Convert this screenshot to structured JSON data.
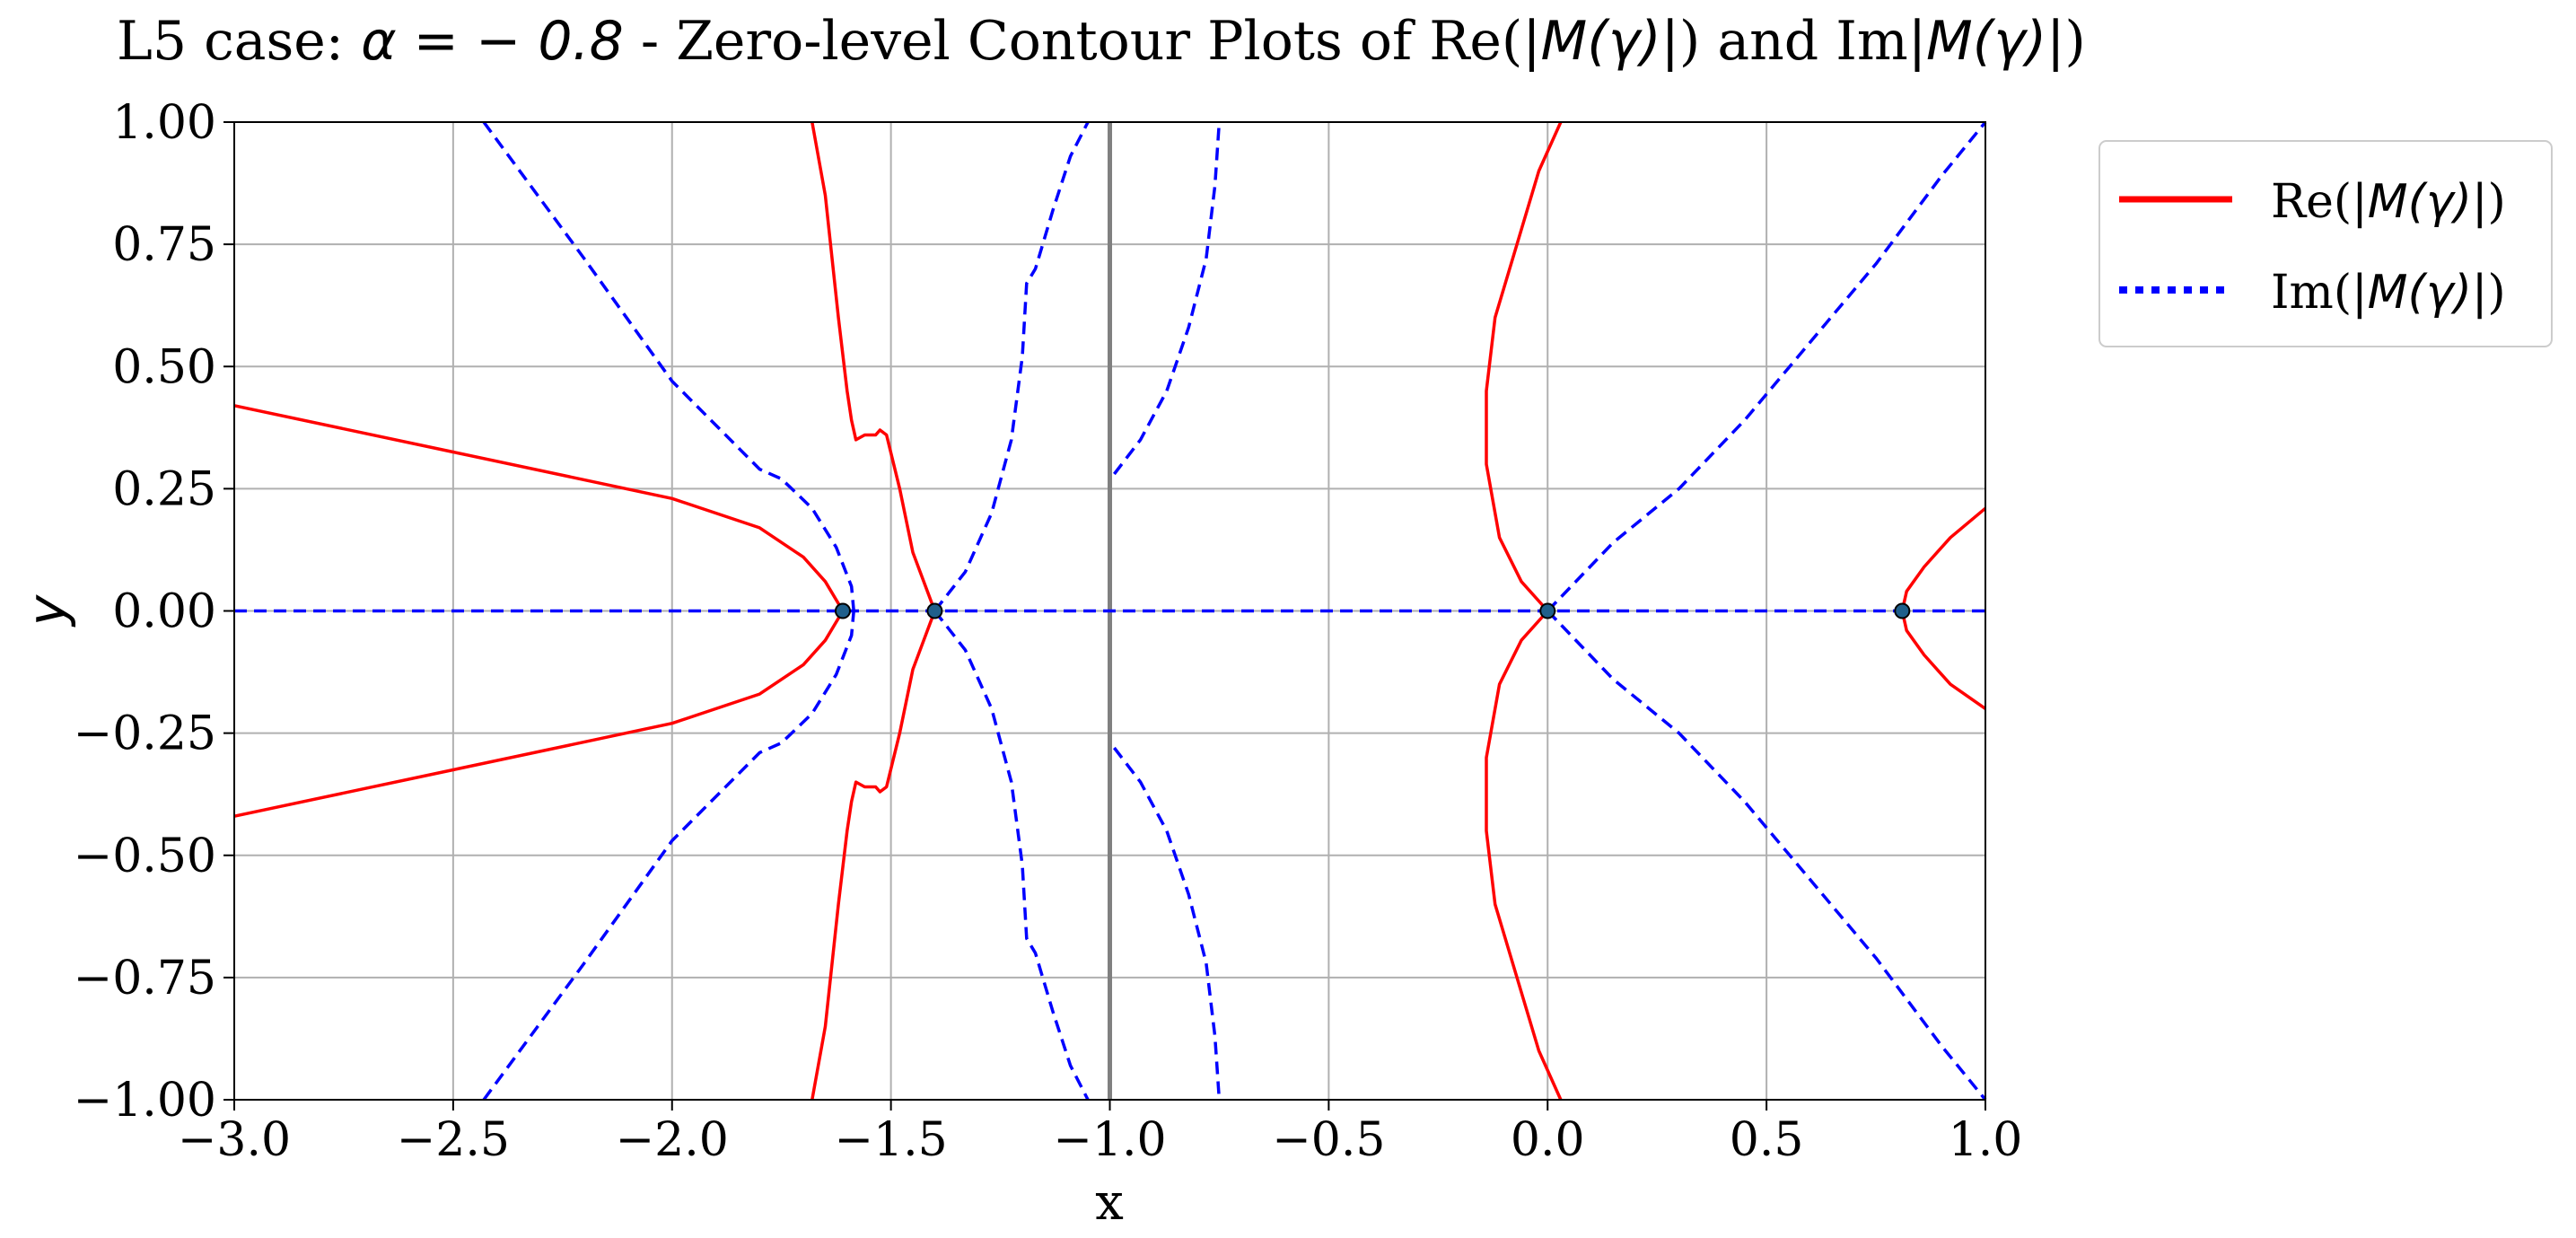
{
  "chart_data": {
    "type": "line",
    "title": "L5 case: α = − 0.8 - Zero-level Contour Plots of Re(|M(γ)|) and Im|M(γ)|)",
    "title_parts": {
      "prefix": "L5 case: ",
      "math": "α = − 0.8",
      "middle": " - Zero-level Contour Plots of Re(",
      "expr1": "|M(γ)|",
      "and": ") and Im",
      "expr2": "|M(γ)|",
      "suffix": ")"
    },
    "xlabel": "x",
    "ylabel": "y",
    "xlim": [
      -3.0,
      1.0
    ],
    "ylim": [
      -1.0,
      1.0
    ],
    "xticks": [
      -3.0,
      -2.5,
      -2.0,
      -1.5,
      -1.0,
      -0.5,
      0.0,
      0.5,
      1.0
    ],
    "xtick_labels": [
      "−3.0",
      "−2.5",
      "−2.0",
      "−1.5",
      "−1.0",
      "−0.5",
      "0.0",
      "0.5",
      "1.0"
    ],
    "yticks": [
      1.0,
      0.75,
      0.5,
      0.25,
      0.0,
      -0.25,
      -0.5,
      -0.75,
      -1.0
    ],
    "ytick_labels": [
      "1.00",
      "0.75",
      "0.50",
      "0.25",
      "0.00",
      "−0.25",
      "−0.50",
      "−0.75",
      "−1.00"
    ],
    "grid": true,
    "legend_position": "outside-top-right",
    "legend": [
      {
        "label_pre": "Re(",
        "label_math": "|M(γ)|",
        "label_post": ")",
        "color": "#ff0000",
        "style": "solid"
      },
      {
        "label_pre": "Im(",
        "label_math": "|M(γ)|",
        "label_post": ")",
        "color": "#0000ff",
        "style": "dotted"
      }
    ],
    "vertical_line": {
      "x": -1.0,
      "color": "#808080"
    },
    "roots": [
      {
        "x": -1.61,
        "y": 0.0
      },
      {
        "x": -1.4,
        "y": 0.0
      },
      {
        "x": 0.0,
        "y": 0.0
      },
      {
        "x": 0.81,
        "y": 0.0
      }
    ],
    "series": [
      {
        "name": "Re upper-left branch",
        "group": "re",
        "points": [
          [
            -3.0,
            0.42
          ],
          [
            -2.5,
            0.325
          ],
          [
            -2.0,
            0.23
          ],
          [
            -1.8,
            0.17
          ],
          [
            -1.7,
            0.11
          ],
          [
            -1.65,
            0.06
          ],
          [
            -1.61,
            0.0
          ]
        ]
      },
      {
        "name": "Re lower-left branch",
        "group": "re",
        "points": [
          [
            -3.0,
            -0.42
          ],
          [
            -2.5,
            -0.325
          ],
          [
            -2.0,
            -0.23
          ],
          [
            -1.8,
            -0.17
          ],
          [
            -1.7,
            -0.11
          ],
          [
            -1.65,
            -0.06
          ],
          [
            -1.61,
            0.0
          ]
        ]
      },
      {
        "name": "Re upper middle",
        "group": "re",
        "points": [
          [
            -1.68,
            1.0
          ],
          [
            -1.65,
            0.85
          ],
          [
            -1.62,
            0.6
          ],
          [
            -1.6,
            0.45
          ],
          [
            -1.59,
            0.39
          ],
          [
            -1.58,
            0.35
          ],
          [
            -1.56,
            0.36
          ],
          [
            -1.535,
            0.36
          ],
          [
            -1.525,
            0.37
          ],
          [
            -1.51,
            0.36
          ],
          [
            -1.48,
            0.25
          ],
          [
            -1.45,
            0.12
          ],
          [
            -1.4,
            0.0
          ]
        ]
      },
      {
        "name": "Re lower middle",
        "group": "re",
        "points": [
          [
            -1.68,
            -1.0
          ],
          [
            -1.65,
            -0.85
          ],
          [
            -1.62,
            -0.6
          ],
          [
            -1.6,
            -0.45
          ],
          [
            -1.59,
            -0.39
          ],
          [
            -1.58,
            -0.35
          ],
          [
            -1.56,
            -0.36
          ],
          [
            -1.535,
            -0.36
          ],
          [
            -1.525,
            -0.37
          ],
          [
            -1.51,
            -0.36
          ],
          [
            -1.48,
            -0.25
          ],
          [
            -1.45,
            -0.12
          ],
          [
            -1.4,
            0.0
          ]
        ]
      },
      {
        "name": "Re right upper",
        "group": "re",
        "points": [
          [
            0.0,
            0.0
          ],
          [
            -0.06,
            0.06
          ],
          [
            -0.11,
            0.15
          ],
          [
            -0.14,
            0.3
          ],
          [
            -0.14,
            0.45
          ],
          [
            -0.12,
            0.6
          ],
          [
            -0.07,
            0.75
          ],
          [
            -0.02,
            0.9
          ],
          [
            0.03,
            1.0
          ]
        ]
      },
      {
        "name": "Re right lower",
        "group": "re",
        "points": [
          [
            0.0,
            0.0
          ],
          [
            -0.06,
            -0.06
          ],
          [
            -0.11,
            -0.15
          ],
          [
            -0.14,
            -0.3
          ],
          [
            -0.14,
            -0.45
          ],
          [
            -0.12,
            -0.6
          ],
          [
            -0.07,
            -0.75
          ],
          [
            -0.02,
            -0.9
          ],
          [
            0.03,
            -1.0
          ]
        ]
      },
      {
        "name": "Re far right",
        "group": "re",
        "points": [
          [
            1.0,
            0.21
          ],
          [
            0.92,
            0.15
          ],
          [
            0.86,
            0.09
          ],
          [
            0.82,
            0.04
          ],
          [
            0.81,
            0.0
          ],
          [
            0.82,
            -0.04
          ],
          [
            0.86,
            -0.09
          ],
          [
            0.92,
            -0.15
          ],
          [
            1.0,
            -0.2
          ]
        ]
      },
      {
        "name": "Im real axis",
        "group": "im",
        "points": [
          [
            -3.0,
            0.0
          ],
          [
            1.0,
            0.0
          ]
        ]
      },
      {
        "name": "Im upper left",
        "group": "im",
        "points": [
          [
            -2.43,
            1.0
          ],
          [
            -2.2,
            0.72
          ],
          [
            -2.0,
            0.47
          ],
          [
            -1.8,
            0.29
          ],
          [
            -1.75,
            0.27
          ],
          [
            -1.68,
            0.21
          ],
          [
            -1.625,
            0.13
          ],
          [
            -1.59,
            0.05
          ],
          [
            -1.585,
            0.0
          ]
        ]
      },
      {
        "name": "Im lower left",
        "group": "im",
        "points": [
          [
            -2.43,
            -1.0
          ],
          [
            -2.2,
            -0.72
          ],
          [
            -2.0,
            -0.47
          ],
          [
            -1.8,
            -0.29
          ],
          [
            -1.75,
            -0.27
          ],
          [
            -1.68,
            -0.21
          ],
          [
            -1.625,
            -0.13
          ],
          [
            -1.59,
            -0.05
          ],
          [
            -1.585,
            0.0
          ]
        ]
      },
      {
        "name": "Im upper center",
        "group": "im",
        "points": [
          [
            -1.4,
            0.0
          ],
          [
            -1.33,
            0.08
          ],
          [
            -1.27,
            0.2
          ],
          [
            -1.225,
            0.35
          ],
          [
            -1.2,
            0.52
          ],
          [
            -1.19,
            0.67
          ],
          [
            -1.17,
            0.7
          ],
          [
            -1.13,
            0.82
          ],
          [
            -1.09,
            0.93
          ],
          [
            -1.05,
            1.0
          ]
        ]
      },
      {
        "name": "Im lower center",
        "group": "im",
        "points": [
          [
            -1.4,
            0.0
          ],
          [
            -1.33,
            -0.08
          ],
          [
            -1.27,
            -0.2
          ],
          [
            -1.225,
            -0.35
          ],
          [
            -1.2,
            -0.52
          ],
          [
            -1.19,
            -0.67
          ],
          [
            -1.17,
            -0.7
          ],
          [
            -1.13,
            -0.82
          ],
          [
            -1.09,
            -0.93
          ],
          [
            -1.05,
            -1.0
          ]
        ]
      },
      {
        "name": "Im upper right of pole",
        "group": "im",
        "points": [
          [
            -0.99,
            0.28
          ],
          [
            -0.93,
            0.35
          ],
          [
            -0.87,
            0.45
          ],
          [
            -0.82,
            0.58
          ],
          [
            -0.78,
            0.72
          ],
          [
            -0.76,
            0.87
          ],
          [
            -0.75,
            1.0
          ]
        ]
      },
      {
        "name": "Im lower right of pole",
        "group": "im",
        "points": [
          [
            -0.99,
            -0.28
          ],
          [
            -0.93,
            -0.35
          ],
          [
            -0.87,
            -0.45
          ],
          [
            -0.82,
            -0.58
          ],
          [
            -0.78,
            -0.72
          ],
          [
            -0.76,
            -0.87
          ],
          [
            -0.75,
            -1.0
          ]
        ]
      },
      {
        "name": "Im right upper",
        "group": "im",
        "points": [
          [
            0.0,
            0.0
          ],
          [
            0.15,
            0.14
          ],
          [
            0.3,
            0.25
          ],
          [
            0.45,
            0.39
          ],
          [
            0.6,
            0.55
          ],
          [
            0.75,
            0.71
          ],
          [
            0.9,
            0.89
          ],
          [
            1.0,
            1.0
          ]
        ]
      },
      {
        "name": "Im right lower",
        "group": "im",
        "points": [
          [
            0.0,
            0.0
          ],
          [
            0.15,
            -0.14
          ],
          [
            0.3,
            -0.25
          ],
          [
            0.45,
            -0.39
          ],
          [
            0.6,
            -0.55
          ],
          [
            0.75,
            -0.71
          ],
          [
            0.9,
            -0.89
          ],
          [
            1.0,
            -1.0
          ]
        ]
      }
    ]
  }
}
